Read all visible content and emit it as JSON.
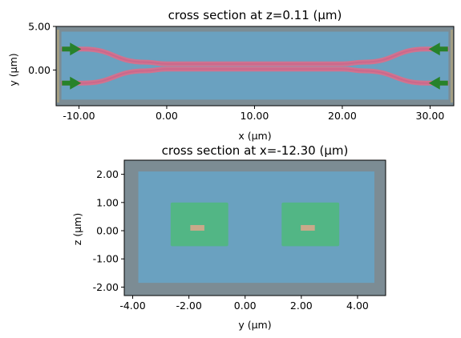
{
  "colors": {
    "outer": "#7c8c94",
    "medium": "#6aa1c0",
    "waveguide": "#d1738f",
    "waveguide_core": "#c7608a",
    "monitor": "#52b685",
    "port": "#c9a98a",
    "arrow": "#27822a",
    "source_edge": "#b7a77d"
  },
  "chart_data": [
    {
      "type": "cross_section",
      "title": "cross section at z=0.11 (μm)",
      "xlabel": "x (μm)",
      "ylabel": "y (μm)",
      "xlim": [
        -12.6,
        32.7
      ],
      "ylim": [
        -4.1,
        5.0
      ],
      "xticks": [
        -10,
        0,
        10,
        20,
        30
      ],
      "xtick_labels": [
        "-10.00",
        "0.00",
        "10.00",
        "20.00",
        "30.00"
      ],
      "yticks": [
        5,
        0
      ],
      "ytick_labels": [
        "5.00",
        "0.00"
      ],
      "simulation_box": {
        "x": [
          -12.6,
          32.7
        ],
        "y": [
          -4.1,
          5.0
        ]
      },
      "medium_region": {
        "x": [
          -12.0,
          32.1
        ],
        "y": [
          -3.4,
          4.4
        ]
      },
      "waveguides": [
        {
          "name": "top",
          "points": [
            [
              -12.0,
              2.4
            ],
            [
              -9.5,
              2.4
            ],
            [
              -2.5,
              0.9
            ],
            [
              0.0,
              0.7
            ],
            [
              20.0,
              0.7
            ],
            [
              22.5,
              0.9
            ],
            [
              29.5,
              2.4
            ],
            [
              32.1,
              2.4
            ]
          ]
        },
        {
          "name": "bottom",
          "points": [
            [
              -12.0,
              -1.5
            ],
            [
              -9.5,
              -1.5
            ],
            [
              -2.5,
              -0.1
            ],
            [
              0.0,
              0.1
            ],
            [
              20.0,
              0.1
            ],
            [
              22.5,
              -0.1
            ],
            [
              29.5,
              -1.5
            ],
            [
              32.1,
              -1.5
            ]
          ]
        }
      ],
      "sources": [
        {
          "x": -12.3,
          "y": 2.4,
          "direction": "+x"
        },
        {
          "x": -12.3,
          "y": -1.5,
          "direction": "+x"
        },
        {
          "x": 32.4,
          "y": 2.4,
          "direction": "-x"
        },
        {
          "x": 32.4,
          "y": -1.5,
          "direction": "-x"
        }
      ]
    },
    {
      "type": "cross_section",
      "title": "cross section at x=-12.30 (μm)",
      "xlabel": "y (μm)",
      "ylabel": "z (μm)",
      "xlim": [
        -4.3,
        5.0
      ],
      "ylim": [
        -2.3,
        2.5
      ],
      "xticks": [
        -4,
        -2,
        0,
        2,
        4
      ],
      "xtick_labels": [
        "-4.00",
        "-2.00",
        "0.00",
        "2.00",
        "4.00"
      ],
      "yticks": [
        2,
        1,
        0,
        -1,
        -2
      ],
      "ytick_labels": [
        "2.00",
        "1.00",
        "0.00",
        "-1.00",
        "-2.00"
      ],
      "medium_region": {
        "x": [
          -3.8,
          4.6
        ],
        "y": [
          -1.85,
          2.1
        ]
      },
      "monitors": [
        {
          "x": [
            -2.65,
            -0.6
          ],
          "y": [
            -0.55,
            1.0
          ]
        },
        {
          "x": [
            1.3,
            3.35
          ],
          "y": [
            -0.55,
            1.0
          ]
        }
      ],
      "waveguide_cores": [
        {
          "x": [
            -1.95,
            -1.45
          ],
          "y": [
            0.0,
            0.2
          ]
        },
        {
          "x": [
            1.98,
            2.48
          ],
          "y": [
            0.0,
            0.2
          ]
        }
      ]
    }
  ]
}
